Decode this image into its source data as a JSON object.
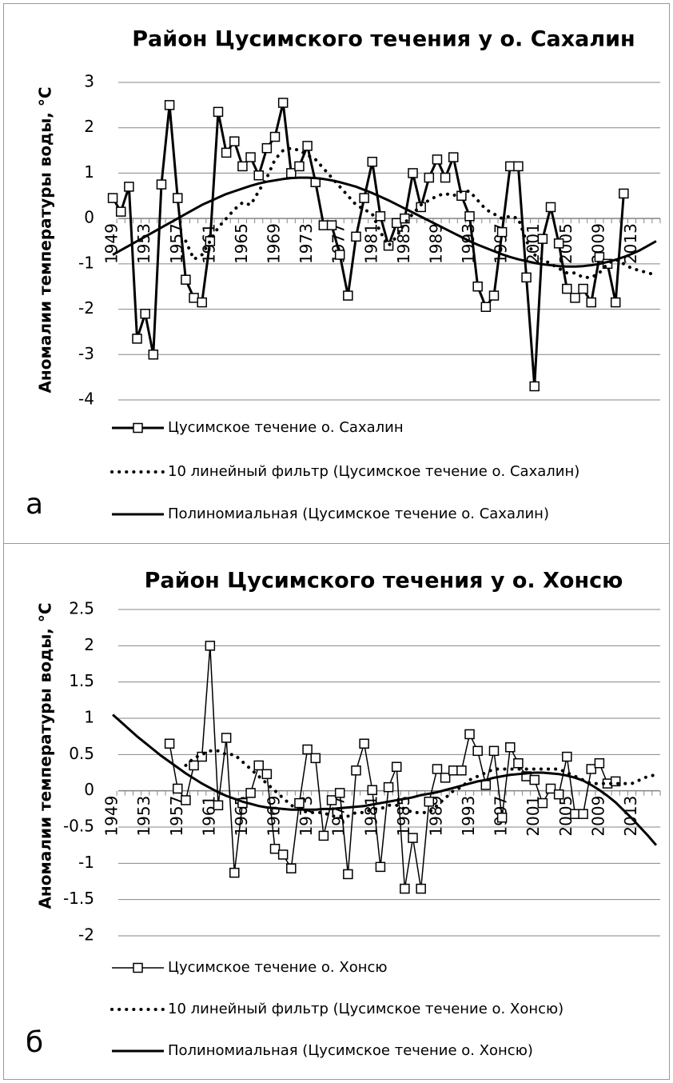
{
  "chart_data": [
    {
      "type": "line",
      "panel_label": "а",
      "title": "Район Цусимского течения у о. Сахалин",
      "y_label": "Аномалии температуры воды, °С",
      "categories": [
        "1949",
        null,
        null,
        null,
        "1953",
        null,
        null,
        null,
        "1957",
        null,
        null,
        null,
        "1961",
        null,
        null,
        null,
        "1965",
        null,
        null,
        null,
        "1969",
        null,
        null,
        null,
        "1973",
        null,
        null,
        null,
        "1977",
        null,
        null,
        null,
        "1981",
        null,
        null,
        null,
        "1985",
        null,
        null,
        null,
        "1989",
        null,
        null,
        null,
        "1993",
        null,
        null,
        null,
        "1997",
        null,
        null,
        null,
        "2001",
        null,
        null,
        null,
        "2005",
        null,
        null,
        null,
        "2009",
        null,
        null,
        null,
        "2013",
        null,
        null,
        null
      ],
      "ylim": [
        -4,
        3
      ],
      "yticks": [
        -4,
        -3,
        -2,
        -1,
        0,
        1,
        2,
        3
      ],
      "grid": true,
      "series": [
        {
          "name": "Цусимское течение о. Сахалин",
          "color": "#000000",
          "marker": "square",
          "dash": "solid",
          "width": 3,
          "values": [
            0.45,
            0.15,
            0.7,
            -2.65,
            -2.1,
            -3.0,
            0.75,
            2.5,
            0.45,
            -1.35,
            -1.75,
            -1.85,
            -0.5,
            2.35,
            1.45,
            1.7,
            1.15,
            1.35,
            0.95,
            1.55,
            1.8,
            2.55,
            1.0,
            1.15,
            1.6,
            0.8,
            -0.15,
            -0.15,
            -0.8,
            -1.7,
            -0.4,
            0.45,
            1.25,
            0.05,
            -0.6,
            -0.1,
            0.0,
            1.0,
            0.25,
            0.9,
            1.3,
            0.9,
            1.35,
            0.5,
            0.05,
            -1.5,
            -1.95,
            -1.7,
            -0.3,
            1.15,
            1.15,
            -1.3,
            -3.7,
            -0.45,
            0.25,
            -0.55,
            -1.55,
            -1.75,
            -1.55,
            -1.85,
            -0.85,
            -1.0,
            -1.85,
            0.55,
            null,
            null,
            null,
            null
          ]
        },
        {
          "name": "10 линейный фильтр (Цусимское течение о. Сахалин)",
          "color": "#000000",
          "marker": "none",
          "dash": "dotted",
          "width": 4,
          "values": [
            null,
            null,
            null,
            null,
            null,
            null,
            null,
            null,
            null,
            -0.5,
            -0.9,
            -0.8,
            -0.5,
            -0.2,
            0.0,
            0.2,
            0.35,
            0.3,
            0.6,
            0.9,
            1.3,
            1.5,
            1.55,
            1.5,
            1.4,
            1.3,
            1.1,
            0.9,
            0.7,
            0.5,
            0.3,
            0.2,
            0.1,
            -0.3,
            -0.6,
            -0.4,
            -0.1,
            0.1,
            0.3,
            0.4,
            0.5,
            0.55,
            0.5,
            0.6,
            0.6,
            0.4,
            0.2,
            0.1,
            0.0,
            0.05,
            0.0,
            -0.5,
            -0.8,
            -0.9,
            -1.0,
            -1.1,
            -1.2,
            -1.2,
            -1.3,
            -1.3,
            -1.2,
            -1.0,
            -0.9,
            -1.0,
            -1.1,
            -1.15,
            -1.2,
            -1.25
          ]
        },
        {
          "name": "Полиномиальная (Цусимское течение о. Сахалин)",
          "color": "#000000",
          "marker": "none",
          "dash": "solid",
          "width": 3,
          "values": [
            -0.8,
            -0.7,
            -0.6,
            -0.5,
            -0.4,
            -0.3,
            -0.2,
            -0.1,
            0.0,
            0.1,
            0.2,
            0.3,
            0.38,
            0.46,
            0.54,
            0.6,
            0.66,
            0.72,
            0.77,
            0.81,
            0.84,
            0.87,
            0.89,
            0.9,
            0.9,
            0.89,
            0.87,
            0.84,
            0.8,
            0.75,
            0.7,
            0.63,
            0.56,
            0.48,
            0.4,
            0.31,
            0.22,
            0.13,
            0.04,
            -0.05,
            -0.14,
            -0.23,
            -0.32,
            -0.41,
            -0.5,
            -0.58,
            -0.65,
            -0.72,
            -0.79,
            -0.85,
            -0.9,
            -0.94,
            -0.98,
            -1.01,
            -1.03,
            -1.05,
            -1.06,
            -1.06,
            -1.05,
            -1.03,
            -1.0,
            -0.96,
            -0.91,
            -0.85,
            -0.78,
            -0.7,
            -0.6,
            -0.5
          ]
        }
      ]
    },
    {
      "type": "line",
      "panel_label": "б",
      "title": "Район Цусимского течения у о. Хонсю",
      "y_label": "Аномалии температуры воды, °С",
      "categories": [
        "1949",
        null,
        null,
        null,
        "1953",
        null,
        null,
        null,
        "1957",
        null,
        null,
        null,
        "1961",
        null,
        null,
        null,
        "1965",
        null,
        null,
        null,
        "1969",
        null,
        null,
        null,
        "1973",
        null,
        null,
        null,
        "1977",
        null,
        null,
        null,
        "1981",
        null,
        null,
        null,
        "1985",
        null,
        null,
        null,
        "1989",
        null,
        null,
        null,
        "1993",
        null,
        null,
        null,
        "1997",
        null,
        null,
        null,
        "2001",
        null,
        null,
        null,
        "2005",
        null,
        null,
        null,
        "2009",
        null,
        null,
        null,
        "2013",
        null,
        null,
        null
      ],
      "ylim": [
        -2,
        2.5
      ],
      "yticks": [
        -2,
        -1.5,
        -1,
        -0.5,
        0,
        0.5,
        1,
        1.5,
        2,
        2.5
      ],
      "grid": true,
      "series": [
        {
          "name": "Цусимское течение о. Хонсю",
          "color": "#000000",
          "marker": "square",
          "dash": "solid",
          "width": 1.5,
          "values": [
            null,
            null,
            null,
            null,
            null,
            null,
            null,
            0.65,
            0.03,
            -0.13,
            0.35,
            0.47,
            2.0,
            -0.2,
            0.73,
            -1.13,
            -0.17,
            -0.03,
            0.35,
            0.23,
            -0.8,
            -0.88,
            -1.07,
            -0.17,
            0.57,
            0.45,
            -0.62,
            -0.13,
            -0.03,
            -1.15,
            0.28,
            0.65,
            0.01,
            -1.05,
            0.05,
            0.33,
            -1.35,
            -0.65,
            -1.35,
            -0.15,
            0.3,
            0.18,
            0.28,
            0.28,
            0.78,
            0.55,
            0.08,
            0.55,
            -0.37,
            0.6,
            0.38,
            0.2,
            0.15,
            -0.17,
            0.03,
            -0.05,
            0.47,
            -0.32,
            -0.32,
            0.3,
            0.38,
            0.1,
            0.13,
            null,
            null,
            null,
            null,
            null
          ]
        },
        {
          "name": "10 линейный фильтр (Цусимское течение о. Хонсю)",
          "color": "#000000",
          "marker": "none",
          "dash": "dotted",
          "width": 4,
          "values": [
            null,
            null,
            null,
            null,
            null,
            null,
            null,
            null,
            null,
            0.35,
            0.45,
            0.5,
            0.55,
            0.55,
            0.5,
            0.5,
            0.4,
            0.3,
            0.2,
            0.1,
            0.0,
            -0.1,
            -0.2,
            -0.25,
            -0.3,
            -0.3,
            -0.3,
            -0.35,
            -0.35,
            -0.35,
            -0.3,
            -0.3,
            -0.25,
            -0.25,
            -0.2,
            -0.2,
            -0.25,
            -0.3,
            -0.3,
            -0.3,
            -0.2,
            -0.1,
            0.0,
            0.05,
            0.15,
            0.2,
            0.25,
            0.3,
            0.3,
            0.3,
            0.3,
            0.3,
            0.3,
            0.3,
            0.3,
            0.3,
            0.25,
            0.2,
            0.15,
            0.1,
            0.1,
            0.1,
            0.1,
            0.1,
            0.1,
            0.15,
            0.2,
            0.22
          ]
        },
        {
          "name": "Полиномиальная (Цусимское течение о. Хонсю)",
          "color": "#000000",
          "marker": "none",
          "dash": "solid",
          "width": 3,
          "values": [
            1.05,
            0.95,
            0.85,
            0.75,
            0.66,
            0.57,
            0.48,
            0.4,
            0.32,
            0.24,
            0.17,
            0.1,
            0.04,
            -0.02,
            -0.07,
            -0.11,
            -0.15,
            -0.18,
            -0.21,
            -0.23,
            -0.24,
            -0.25,
            -0.26,
            -0.26,
            -0.26,
            -0.26,
            -0.25,
            -0.25,
            -0.24,
            -0.23,
            -0.22,
            -0.21,
            -0.19,
            -0.17,
            -0.15,
            -0.13,
            -0.11,
            -0.09,
            -0.06,
            -0.04,
            -0.02,
            0.01,
            0.04,
            0.07,
            0.1,
            0.13,
            0.15,
            0.18,
            0.2,
            0.22,
            0.23,
            0.24,
            0.25,
            0.25,
            0.24,
            0.23,
            0.21,
            0.18,
            0.14,
            0.08,
            0.01,
            -0.07,
            -0.16,
            -0.27,
            -0.38,
            -0.5,
            -0.62,
            -0.75
          ]
        }
      ]
    }
  ]
}
